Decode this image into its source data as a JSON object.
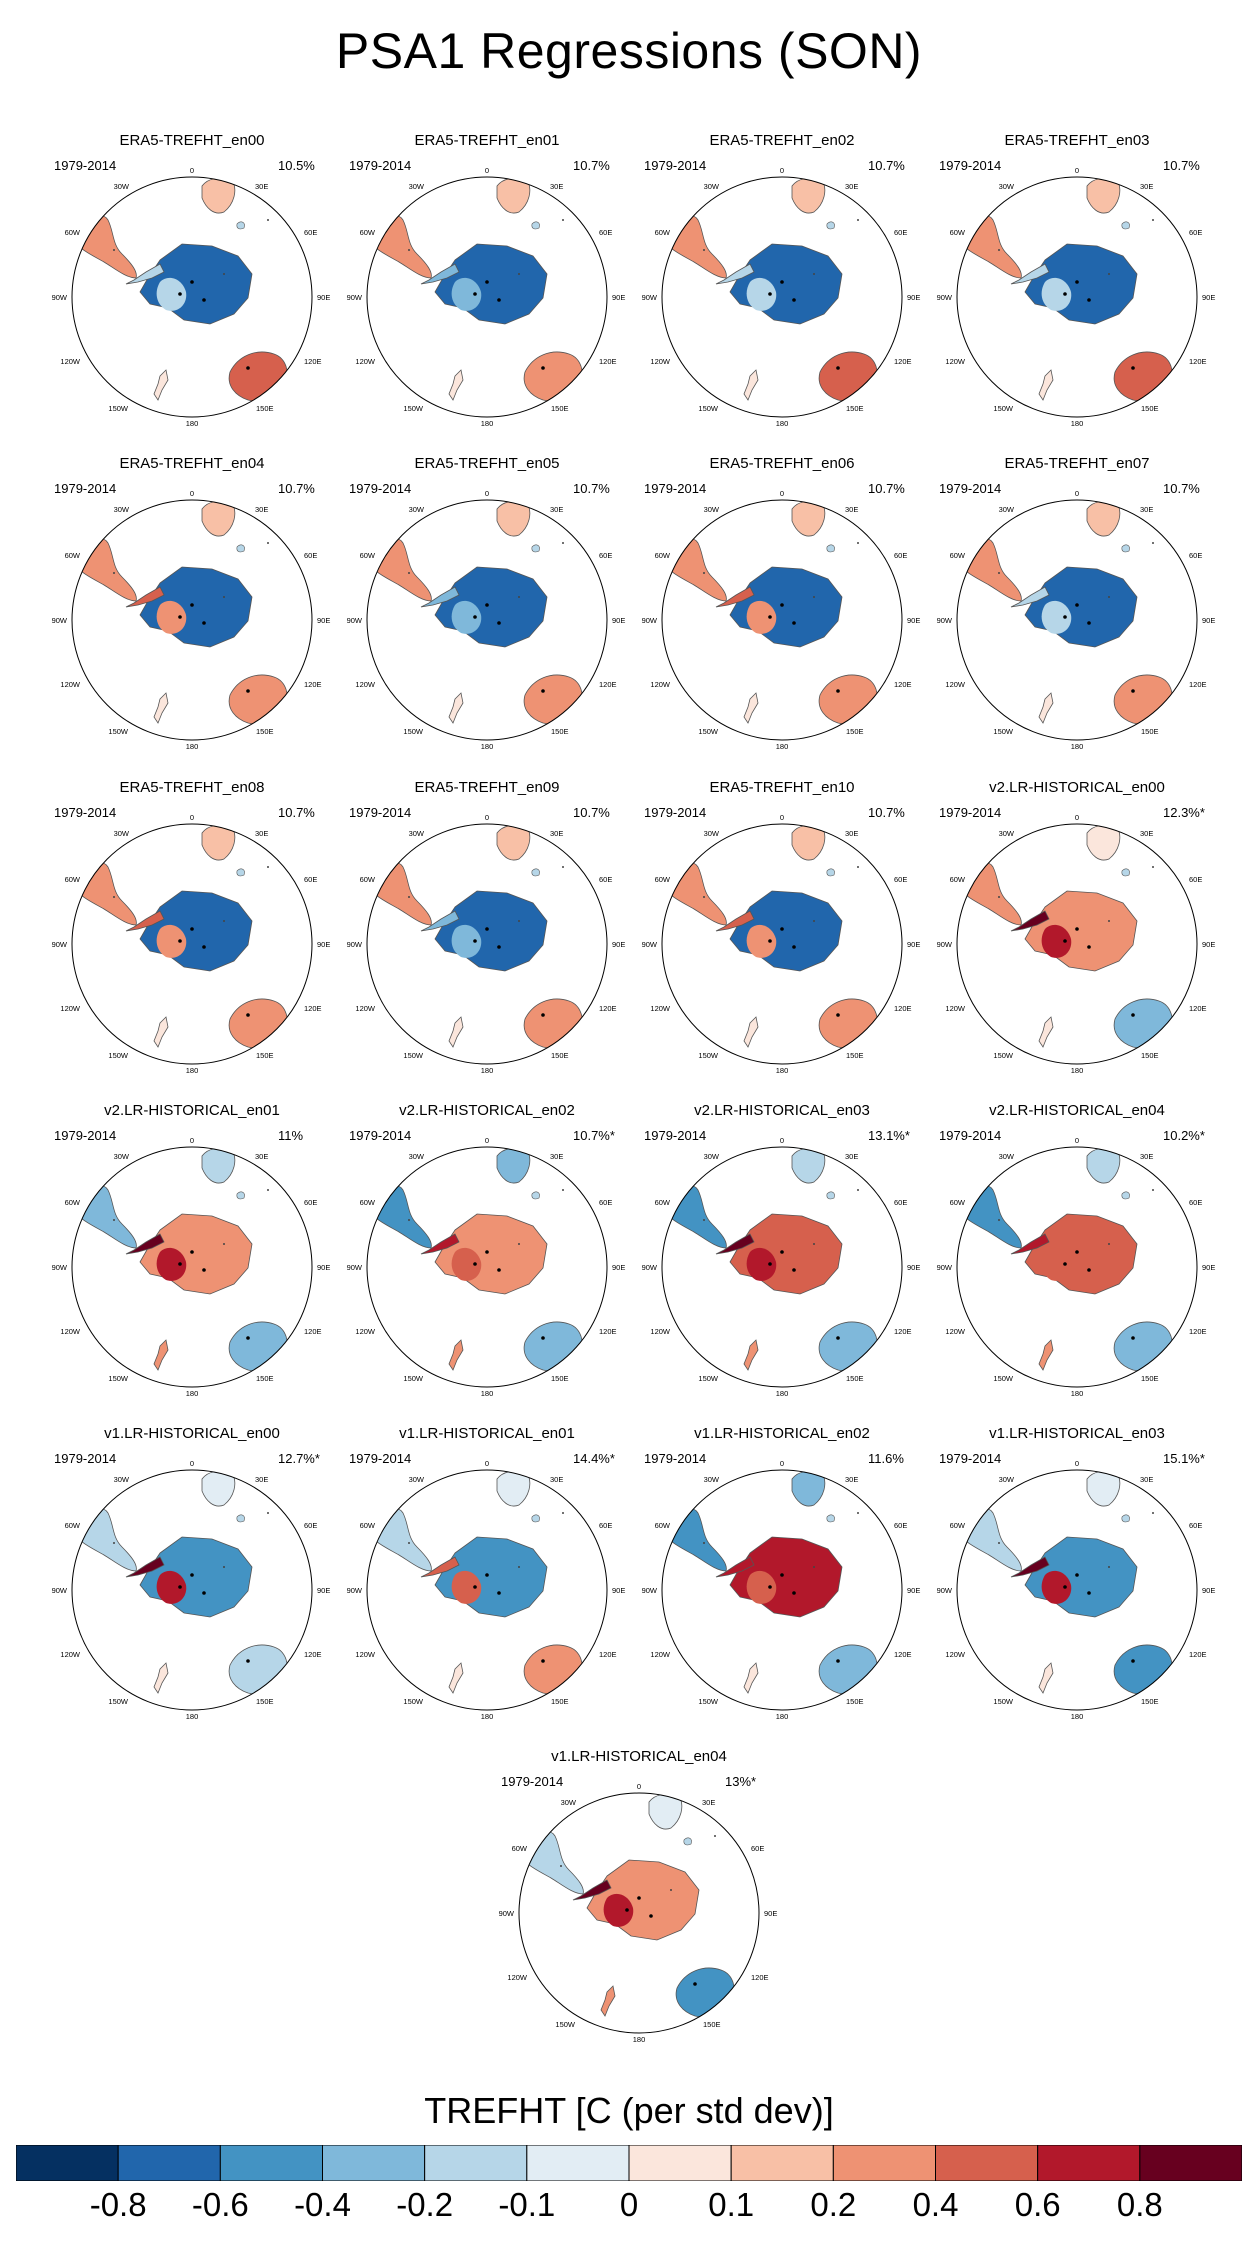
{
  "title": "PSA1 Regressions (SON)",
  "years": "1979-2014",
  "map_labels": {
    "top": "0",
    "right_top": "30E",
    "right_mid": "60E",
    "right": "90E",
    "right_low": "120E",
    "bottom_right": "150E",
    "bottom": "180",
    "bottom_left": "150W",
    "left_low": "120W",
    "left": "90W",
    "left_mid": "60W",
    "left_top": "30W"
  },
  "panels": [
    {
      "name": "ERA5-TREFHT_en00",
      "pct": "10.5%",
      "ant": -0.8,
      "sam": 0.3,
      "pen": -0.2,
      "aus": 0.4,
      "nz": 0.0
    },
    {
      "name": "ERA5-TREFHT_en01",
      "pct": "10.7%",
      "ant": -0.8,
      "sam": 0.3,
      "pen": -0.3,
      "aus": 0.3,
      "nz": 0.0
    },
    {
      "name": "ERA5-TREFHT_en02",
      "pct": "10.7%",
      "ant": -0.8,
      "sam": 0.3,
      "pen": -0.2,
      "aus": 0.4,
      "nz": 0.0
    },
    {
      "name": "ERA5-TREFHT_en03",
      "pct": "10.7%",
      "ant": -0.8,
      "sam": 0.3,
      "pen": -0.2,
      "aus": 0.4,
      "nz": 0.0
    },
    {
      "name": "ERA5-TREFHT_en04",
      "pct": "10.7%",
      "ant": -0.7,
      "sam": 0.3,
      "pen": 0.4,
      "aus": 0.3,
      "nz": 0.0
    },
    {
      "name": "ERA5-TREFHT_en05",
      "pct": "10.7%",
      "ant": -0.8,
      "sam": 0.3,
      "pen": -0.3,
      "aus": 0.3,
      "nz": 0.0
    },
    {
      "name": "ERA5-TREFHT_en06",
      "pct": "10.7%",
      "ant": -0.7,
      "sam": 0.3,
      "pen": 0.4,
      "aus": 0.3,
      "nz": 0.0
    },
    {
      "name": "ERA5-TREFHT_en07",
      "pct": "10.7%",
      "ant": -0.8,
      "sam": 0.3,
      "pen": -0.2,
      "aus": 0.3,
      "nz": 0.0
    },
    {
      "name": "ERA5-TREFHT_en08",
      "pct": "10.7%",
      "ant": -0.7,
      "sam": 0.3,
      "pen": 0.4,
      "aus": 0.3,
      "nz": 0.0
    },
    {
      "name": "ERA5-TREFHT_en09",
      "pct": "10.7%",
      "ant": -0.8,
      "sam": 0.3,
      "pen": -0.3,
      "aus": 0.2,
      "nz": 0.0
    },
    {
      "name": "ERA5-TREFHT_en10",
      "pct": "10.7%",
      "ant": -0.8,
      "sam": 0.3,
      "pen": 0.4,
      "aus": 0.3,
      "nz": 0.0
    },
    {
      "name": "v2.LR-HISTORICAL_en00",
      "pct": "12.3%*",
      "ant": 0.3,
      "sam": 0.2,
      "pen": 0.8,
      "aus": -0.3,
      "nz": 0.0
    },
    {
      "name": "v2.LR-HISTORICAL_en01",
      "pct": "11%",
      "ant": 0.3,
      "sam": -0.4,
      "pen": 0.8,
      "aus": -0.3,
      "nz": 0.2
    },
    {
      "name": "v2.LR-HISTORICAL_en02",
      "pct": "10.7%*",
      "ant": 0.3,
      "sam": -0.6,
      "pen": 0.7,
      "aus": -0.3,
      "nz": 0.2
    },
    {
      "name": "v2.LR-HISTORICAL_en03",
      "pct": "13.1%*",
      "ant": 0.5,
      "sam": -0.5,
      "pen": 0.8,
      "aus": -0.3,
      "nz": 0.2
    },
    {
      "name": "v2.LR-HISTORICAL_en04",
      "pct": "10.2%*",
      "ant": 0.5,
      "sam": -0.5,
      "pen": 0.7,
      "aus": -0.3,
      "nz": 0.2
    },
    {
      "name": "v1.LR-HISTORICAL_en00",
      "pct": "12.7%*",
      "ant": -0.6,
      "sam": -0.2,
      "pen": 0.8,
      "aus": -0.2,
      "nz": 0.0
    },
    {
      "name": "v1.LR-HISTORICAL_en01",
      "pct": "14.4%*",
      "ant": -0.6,
      "sam": -0.2,
      "pen": 0.5,
      "aus": 0.3,
      "nz": 0.0
    },
    {
      "name": "v1.LR-HISTORICAL_en02",
      "pct": "11.6%",
      "ant": 0.6,
      "sam": -0.6,
      "pen": 0.6,
      "aus": -0.4,
      "nz": 0.0
    },
    {
      "name": "v1.LR-HISTORICAL_en03",
      "pct": "15.1%*",
      "ant": -0.6,
      "sam": -0.2,
      "pen": 0.8,
      "aus": -0.5,
      "nz": 0.0
    },
    {
      "name": "v1.LR-HISTORICAL_en04",
      "pct": "13%*",
      "ant": 0.3,
      "sam": -0.2,
      "pen": 0.8,
      "aus": -0.6,
      "nz": 0.2
    }
  ],
  "colorbar": {
    "title": "TREFHT [C (per std dev)]",
    "colors": [
      "#053061",
      "#2166ac",
      "#4393c3",
      "#7fb8da",
      "#b6d6e8",
      "#e2edf4",
      "#fbe6dc",
      "#f8c0a6",
      "#ee9273",
      "#d6604d",
      "#b2182b",
      "#67001f"
    ],
    "ticks": [
      "-0.8",
      "-0.6",
      "-0.4",
      "-0.2",
      "-0.1",
      "0",
      "0.1",
      "0.2",
      "0.4",
      "0.6",
      "0.8"
    ],
    "bounds": [
      -0.8,
      -0.6,
      -0.4,
      -0.2,
      -0.1,
      0,
      0.1,
      0.2,
      0.4,
      0.6,
      0.8
    ]
  }
}
